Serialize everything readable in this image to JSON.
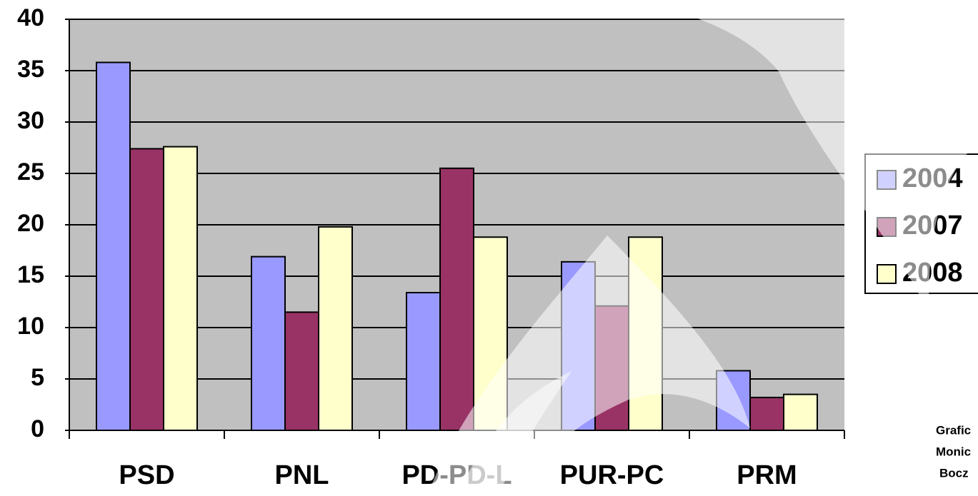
{
  "chart_data": {
    "type": "bar",
    "categories": [
      "PSD",
      "PNL",
      "PD-PD-L",
      "PUR-PC",
      "PRM"
    ],
    "series": [
      {
        "name": "2004",
        "color": "#9999ff",
        "values": [
          35.8,
          16.9,
          13.4,
          16.4,
          5.8
        ]
      },
      {
        "name": "2007",
        "color": "#993366",
        "values": [
          27.4,
          11.5,
          25.5,
          12.1,
          3.2
        ]
      },
      {
        "name": "2008",
        "color": "#ffffcc",
        "values": [
          27.6,
          19.8,
          18.8,
          18.8,
          3.5
        ]
      }
    ],
    "ylim": [
      0,
      40
    ],
    "yticks": [
      0,
      5,
      10,
      15,
      20,
      25,
      30,
      35,
      40
    ],
    "grid": true,
    "legend": "right",
    "annotations": [
      "Grafic",
      "Monic",
      "Bocz"
    ]
  }
}
